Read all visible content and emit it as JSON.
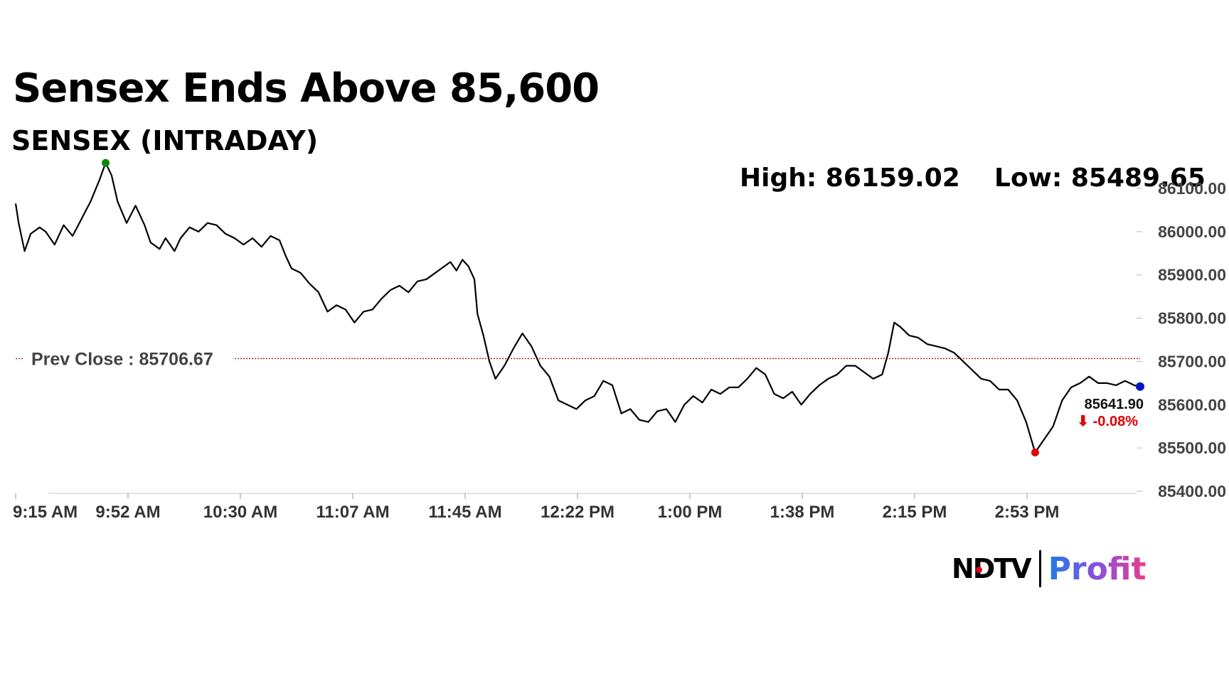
{
  "header": {
    "headline": "Sensex Ends Above 85,600",
    "subtitle": "SENSEX (INTRADAY)",
    "high_text": "High: 86159.02",
    "low_text": "Low: 85489.65"
  },
  "brand": {
    "ndtv": "NDTV",
    "profit": "Profit"
  },
  "chart_data": {
    "type": "line",
    "x_tick_labels": [
      "9:15 AM",
      "9:52 AM",
      "10:30 AM",
      "11:07 AM",
      "11:45 AM",
      "12:22 PM",
      "1:00 PM",
      "1:38 PM",
      "2:15 PM",
      "2:53 PM"
    ],
    "y_tick_labels": [
      "85400.00",
      "85500.00",
      "85600.00",
      "85700.00",
      "85800.00",
      "85900.00",
      "86000.00",
      "86100.00"
    ],
    "ylim": [
      85400,
      86100
    ],
    "grid": false,
    "x_unit": "minutes since 9:15 AM",
    "x_range": [
      0,
      375
    ],
    "series": [
      {
        "values": [
          [
            0,
            86065
          ],
          [
            1,
            86020
          ],
          [
            3,
            85955
          ],
          [
            5,
            85995
          ],
          [
            8,
            86010
          ],
          [
            10,
            86000
          ],
          [
            13,
            85970
          ],
          [
            16,
            86015
          ],
          [
            19,
            85990
          ],
          [
            22,
            86030
          ],
          [
            25,
            86070
          ],
          [
            28,
            86120
          ],
          [
            30,
            86159.02
          ],
          [
            32,
            86130
          ],
          [
            34,
            86070
          ],
          [
            37,
            86020
          ],
          [
            40,
            86060
          ],
          [
            43,
            86015
          ],
          [
            45,
            85975
          ],
          [
            48,
            85960
          ],
          [
            50,
            85985
          ],
          [
            53,
            85955
          ],
          [
            55,
            85985
          ],
          [
            58,
            86010
          ],
          [
            61,
            86000
          ],
          [
            64,
            86020
          ],
          [
            67,
            86015
          ],
          [
            70,
            85995
          ],
          [
            73,
            85985
          ],
          [
            76,
            85970
          ],
          [
            79,
            85985
          ],
          [
            82,
            85965
          ],
          [
            85,
            85990
          ],
          [
            88,
            85980
          ],
          [
            90,
            85945
          ],
          [
            92,
            85915
          ],
          [
            95,
            85905
          ],
          [
            98,
            85880
          ],
          [
            101,
            85860
          ],
          [
            104,
            85815
          ],
          [
            107,
            85830
          ],
          [
            110,
            85820
          ],
          [
            113,
            85790
          ],
          [
            116,
            85815
          ],
          [
            119,
            85820
          ],
          [
            122,
            85845
          ],
          [
            125,
            85865
          ],
          [
            128,
            85875
          ],
          [
            131,
            85860
          ],
          [
            134,
            85885
          ],
          [
            137,
            85890
          ],
          [
            140,
            85905
          ],
          [
            143,
            85920
          ],
          [
            145,
            85930
          ],
          [
            147,
            85910
          ],
          [
            149,
            85935
          ],
          [
            151,
            85920
          ],
          [
            153,
            85890
          ],
          [
            154,
            85810
          ],
          [
            156,
            85760
          ],
          [
            158,
            85700
          ],
          [
            160,
            85660
          ],
          [
            163,
            85690
          ],
          [
            166,
            85730
          ],
          [
            169,
            85765
          ],
          [
            172,
            85735
          ],
          [
            175,
            85690
          ],
          [
            178,
            85665
          ],
          [
            181,
            85610
          ],
          [
            184,
            85600
          ],
          [
            187,
            85590
          ],
          [
            190,
            85610
          ],
          [
            193,
            85620
          ],
          [
            196,
            85655
          ],
          [
            199,
            85645
          ],
          [
            202,
            85580
          ],
          [
            205,
            85590
          ],
          [
            208,
            85565
          ],
          [
            211,
            85560
          ],
          [
            214,
            85585
          ],
          [
            217,
            85590
          ],
          [
            220,
            85560
          ],
          [
            223,
            85600
          ],
          [
            226,
            85620
          ],
          [
            229,
            85605
          ],
          [
            232,
            85635
          ],
          [
            235,
            85625
          ],
          [
            238,
            85640
          ],
          [
            241,
            85640
          ],
          [
            244,
            85660
          ],
          [
            247,
            85685
          ],
          [
            250,
            85670
          ],
          [
            253,
            85625
          ],
          [
            256,
            85615
          ],
          [
            259,
            85630
          ],
          [
            262,
            85600
          ],
          [
            265,
            85625
          ],
          [
            268,
            85645
          ],
          [
            271,
            85660
          ],
          [
            274,
            85670
          ],
          [
            277,
            85690
          ],
          [
            280,
            85690
          ],
          [
            283,
            85675
          ],
          [
            286,
            85660
          ],
          [
            289,
            85670
          ],
          [
            291,
            85720
          ],
          [
            293,
            85790
          ],
          [
            295,
            85780
          ],
          [
            298,
            85760
          ],
          [
            301,
            85755
          ],
          [
            304,
            85740
          ],
          [
            307,
            85735
          ],
          [
            310,
            85730
          ],
          [
            313,
            85720
          ],
          [
            316,
            85700
          ],
          [
            319,
            85680
          ],
          [
            322,
            85660
          ],
          [
            325,
            85655
          ],
          [
            328,
            85635
          ],
          [
            331,
            85635
          ],
          [
            334,
            85610
          ],
          [
            337,
            85560
          ],
          [
            340,
            85489.65
          ],
          [
            343,
            85520
          ],
          [
            346,
            85550
          ],
          [
            349,
            85610
          ],
          [
            352,
            85640
          ],
          [
            355,
            85650
          ],
          [
            358,
            85665
          ],
          [
            361,
            85650
          ],
          [
            364,
            85650
          ],
          [
            367,
            85645
          ],
          [
            370,
            85655
          ],
          [
            373,
            85645
          ],
          [
            375,
            85641.9
          ]
        ]
      }
    ],
    "high": 86159.02,
    "low": 85489.65,
    "prev_close_label": "Prev Close : 85706.67",
    "prev_close_value": 85706.67,
    "last_value_label": "85641.90",
    "change_label": "⬇ -0.08%",
    "colors": {
      "line": "#000000",
      "high_marker": "#0a8a0a",
      "low_marker": "#e00000",
      "last_marker": "#0014c8",
      "prev_close_line": "#b22222"
    }
  }
}
